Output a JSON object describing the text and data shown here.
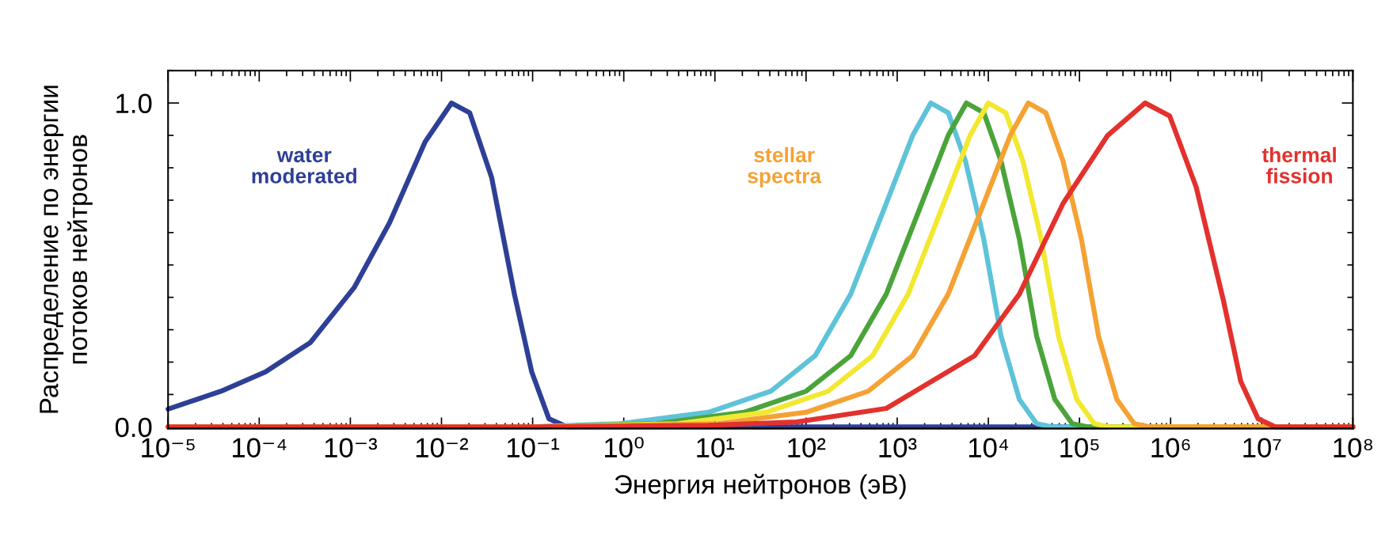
{
  "chart_data": {
    "type": "line",
    "xlabel": "Энергия нейтронов (эВ)",
    "ylabel": "Распределение по энергии\nпотоков нейтронов",
    "log": "x",
    "xlim": [
      1e-05,
      100000000.0
    ],
    "ylim": [
      -0.005,
      1.1
    ],
    "xticks": [
      {
        "value": 1e-05,
        "label": "10⁻⁵"
      },
      {
        "value": 0.0001,
        "label": "10⁻⁴"
      },
      {
        "value": 0.001,
        "label": "10⁻³"
      },
      {
        "value": 0.01,
        "label": "10⁻²"
      },
      {
        "value": 0.1,
        "label": "10⁻¹"
      },
      {
        "value": 1,
        "label": "10⁰"
      },
      {
        "value": 10,
        "label": "10¹"
      },
      {
        "value": 100,
        "label": "10²"
      },
      {
        "value": 1000,
        "label": "10³"
      },
      {
        "value": 10000,
        "label": "10⁴"
      },
      {
        "value": 100000,
        "label": "10⁵"
      },
      {
        "value": 1000000,
        "label": "10⁶"
      },
      {
        "value": 10000000,
        "label": "10⁷"
      },
      {
        "value": 100000000,
        "label": "10⁸"
      }
    ],
    "yticks": [
      {
        "value": 0,
        "label": "0.0"
      },
      {
        "value": 1,
        "label": "1.0"
      }
    ],
    "grid": false,
    "marker": "none",
    "line_style": "solid",
    "series": [
      {
        "color": "#2e3f96",
        "x": [
          1e-05,
          3.8e-05,
          0.000117,
          0.000363,
          0.0011,
          0.00269,
          0.00661,
          0.0129,
          0.0204,
          0.0355,
          0.0631,
          0.0977,
          0.151,
          0.24,
          100000000.0
        ],
        "values": [
          0.055,
          0.11,
          0.17,
          0.26,
          0.43,
          0.63,
          0.88,
          1.0,
          0.97,
          0.77,
          0.41,
          0.17,
          0.025,
          0,
          0
        ]
      },
      {
        "color": "#5ec3d9",
        "x": [
          0.1,
          0.91,
          8.5,
          41,
          126,
          309,
          759,
          1480,
          2340,
          3630,
          5620,
          8910,
          13800,
          21900,
          33900,
          50100,
          100000000.0
        ],
        "values": [
          0,
          0.01,
          0.045,
          0.11,
          0.22,
          0.41,
          0.69,
          0.9,
          1.0,
          0.97,
          0.82,
          0.58,
          0.28,
          0.085,
          0.01,
          0,
          0
        ]
      },
      {
        "color": "#4aa43a",
        "x": [
          0.1,
          2.24,
          20.9,
          100,
          309,
          759,
          1860,
          3630,
          5750,
          8910,
          13800,
          21900,
          33900,
          53700,
          83200,
          123000,
          100000000.0
        ],
        "values": [
          0,
          0.01,
          0.045,
          0.11,
          0.22,
          0.41,
          0.69,
          0.9,
          1.0,
          0.97,
          0.82,
          0.58,
          0.28,
          0.085,
          0.01,
          0,
          0
        ]
      },
      {
        "color": "#f2e830",
        "x": [
          0.1,
          3.89,
          36.3,
          174,
          537,
          1320,
          3240,
          6310,
          10000,
          15500,
          24000,
          38000,
          58900,
          93300,
          145000,
          214000,
          100000000.0
        ],
        "values": [
          0,
          0.01,
          0.045,
          0.11,
          0.22,
          0.41,
          0.69,
          0.9,
          1.0,
          0.97,
          0.82,
          0.58,
          0.28,
          0.085,
          0.01,
          0,
          0
        ]
      },
      {
        "color": "#f5a234",
        "x": [
          1e-05,
          0.1,
          10.7,
          100,
          479,
          1480,
          3630,
          8910,
          17400,
          27500,
          42700,
          66100,
          105000,
          162000,
          257000,
          398000,
          589000,
          100000000.0
        ],
        "values": [
          0,
          0,
          0.01,
          0.045,
          0.11,
          0.22,
          0.41,
          0.69,
          0.9,
          1.0,
          0.97,
          0.82,
          0.58,
          0.28,
          0.085,
          0.01,
          0,
          0
        ]
      },
      {
        "color": "#e3312d",
        "x": [
          1e-05,
          0.1,
          8.5,
          79,
          759,
          7080,
          21900,
          66100,
          204000,
          525000,
          977000,
          1910000,
          3800000,
          5890000,
          9120000,
          14100000,
          100000000.0
        ],
        "values": [
          0,
          0,
          0.005,
          0.015,
          0.057,
          0.22,
          0.41,
          0.69,
          0.9,
          1.0,
          0.96,
          0.74,
          0.39,
          0.14,
          0.025,
          0,
          0
        ]
      }
    ],
    "annotations": [
      "water\nmoderated",
      "stellar\nspectra",
      "thermal\nfission"
    ]
  }
}
